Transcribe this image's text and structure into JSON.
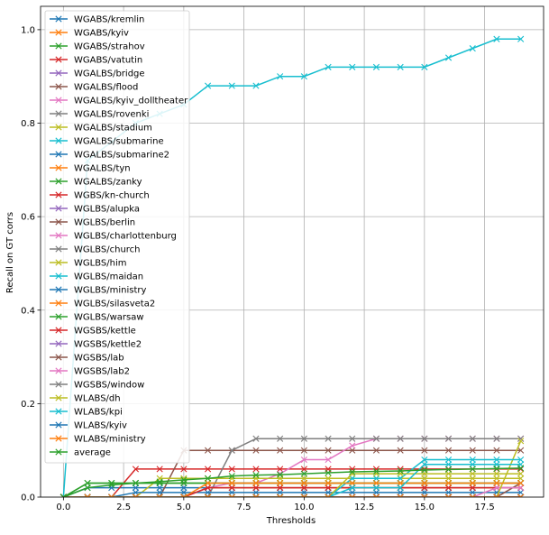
{
  "chart_data": {
    "type": "line",
    "title": "",
    "xlabel": "Thresholds",
    "ylabel": "Recall on GT corrs",
    "xlim": [
      -0.95,
      19.95
    ],
    "ylim": [
      0,
      1.05
    ],
    "xticks": [
      0.0,
      2.5,
      5.0,
      7.5,
      10.0,
      12.5,
      15.0,
      17.5
    ],
    "xtick_labels": [
      "0.0",
      "2.5",
      "5.0",
      "7.5",
      "10.0",
      "12.5",
      "15.0",
      "17.5"
    ],
    "yticks": [
      0.0,
      0.2,
      0.4,
      0.6,
      0.8,
      1.0
    ],
    "ytick_labels": [
      "0.0",
      "0.2",
      "0.4",
      "0.6",
      "0.8",
      "1.0"
    ],
    "grid": true,
    "legend_position": "upper-left",
    "marker": "x",
    "x": [
      0,
      1,
      2,
      3,
      4,
      5,
      6,
      7,
      8,
      9,
      10,
      11,
      12,
      13,
      14,
      15,
      16,
      17,
      18,
      19
    ],
    "series": [
      {
        "name": "WGABS/kremlin",
        "color": "#1f77b4",
        "values": [
          0,
          0.02,
          0.02,
          0.02,
          0.02,
          0.02,
          0.02,
          0.02,
          0.02,
          0.02,
          0.02,
          0.02,
          0.02,
          0.02,
          0.02,
          0.02,
          0.02,
          0.02,
          0.02,
          0.02
        ]
      },
      {
        "name": "WGABS/kyiv",
        "color": "#ff7f0e",
        "values": [
          0,
          0,
          0,
          0,
          0,
          0,
          0.02,
          0.02,
          0.02,
          0.02,
          0.02,
          0.02,
          0.02,
          0.02,
          0.02,
          0.02,
          0.02,
          0.02,
          0.02,
          0.02
        ]
      },
      {
        "name": "WGABS/strahov",
        "color": "#2ca02c",
        "values": [
          0,
          0.03,
          0.03,
          0.03,
          0.03,
          0.03,
          0.03,
          0.03,
          0.03,
          0.03,
          0.03,
          0.03,
          0.03,
          0.03,
          0.03,
          0.03,
          0.03,
          0.03,
          0.03,
          0.03
        ]
      },
      {
        "name": "WGABS/vatutin",
        "color": "#d62728",
        "values": [
          0,
          0,
          0,
          0.06,
          0.06,
          0.06,
          0.06,
          0.06,
          0.06,
          0.06,
          0.06,
          0.06,
          0.06,
          0.06,
          0.06,
          0.06,
          0.06,
          0.06,
          0.06,
          0.06
        ]
      },
      {
        "name": "WGALBS/bridge",
        "color": "#9467bd",
        "values": [
          0,
          0,
          0,
          0,
          0,
          0,
          0,
          0,
          0,
          0,
          0,
          0,
          0,
          0,
          0,
          0,
          0,
          0,
          0,
          0
        ]
      },
      {
        "name": "WGALBS/flood",
        "color": "#8c564b",
        "values": [
          0,
          0,
          0,
          0,
          0,
          0.1,
          0.1,
          0.1,
          0.1,
          0.1,
          0.1,
          0.1,
          0.1,
          0.1,
          0.1,
          0.1,
          0.1,
          0.1,
          0.1,
          0.1
        ]
      },
      {
        "name": "WGALBS/kyiv_dolltheater",
        "color": "#e377c2",
        "values": [
          0,
          0,
          0,
          0,
          0,
          0,
          0.02,
          0.03,
          0.03,
          0.05,
          0.08,
          0.08,
          0.11,
          0.125,
          0.125,
          0.125,
          0.125,
          0.125,
          0.125,
          0.125
        ]
      },
      {
        "name": "WGALBS/rovenki",
        "color": "#7f7f7f",
        "values": [
          0,
          0,
          0,
          0,
          0,
          0,
          0,
          0.1,
          0.125,
          0.125,
          0.125,
          0.125,
          0.125,
          0.125,
          0.125,
          0.125,
          0.125,
          0.125,
          0.125,
          0.125
        ]
      },
      {
        "name": "WGALBS/stadium",
        "color": "#bcbd22",
        "values": [
          0,
          0,
          0,
          0,
          0.04,
          0.04,
          0.04,
          0.04,
          0.04,
          0.04,
          0.04,
          0.04,
          0.04,
          0.04,
          0.04,
          0.04,
          0.04,
          0.04,
          0.04,
          0.04
        ]
      },
      {
        "name": "WGALBS/submarine",
        "color": "#17becf",
        "values": [
          0,
          0.72,
          0.76,
          0.8,
          0.82,
          0.84,
          0.88,
          0.88,
          0.88,
          0.9,
          0.9,
          0.92,
          0.92,
          0.92,
          0.92,
          0.92,
          0.94,
          0.96,
          0.98,
          0.98
        ]
      },
      {
        "name": "WGALBS/submarine2",
        "color": "#1f77b4",
        "values": [
          0,
          0,
          0,
          0.01,
          0.01,
          0.01,
          0.01,
          0.01,
          0.01,
          0.01,
          0.01,
          0.01,
          0.01,
          0.01,
          0.01,
          0.01,
          0.01,
          0.01,
          0.01,
          0.01
        ]
      },
      {
        "name": "WGALBS/tyn",
        "color": "#ff7f0e",
        "values": [
          0,
          0,
          0,
          0,
          0,
          0,
          0,
          0,
          0,
          0,
          0,
          0,
          0,
          0,
          0,
          0,
          0,
          0,
          0,
          0
        ]
      },
      {
        "name": "WGALBS/zanky",
        "color": "#2ca02c",
        "values": [
          0,
          0.03,
          0.03,
          0.03,
          0.03,
          0.03,
          0.03,
          0.03,
          0.03,
          0.03,
          0.03,
          0.03,
          0.03,
          0.03,
          0.03,
          0.03,
          0.03,
          0.03,
          0.03,
          0.03
        ]
      },
      {
        "name": "WGBS/kn-church",
        "color": "#d62728",
        "values": [
          0,
          0,
          0,
          0,
          0,
          0,
          0.02,
          0.02,
          0.02,
          0.02,
          0.02,
          0.02,
          0.02,
          0.02,
          0.02,
          0.02,
          0.02,
          0.02,
          0.02,
          0.02
        ]
      },
      {
        "name": "WGLBS/alupka",
        "color": "#9467bd",
        "values": [
          0,
          0,
          0,
          0,
          0,
          0,
          0,
          0,
          0,
          0,
          0,
          0,
          0,
          0,
          0,
          0,
          0,
          0,
          0,
          0
        ]
      },
      {
        "name": "WGLBS/berlin",
        "color": "#8c564b",
        "values": [
          0,
          0,
          0,
          0,
          0,
          0,
          0,
          0,
          0,
          0,
          0,
          0,
          0,
          0,
          0,
          0,
          0,
          0,
          0,
          0.03
        ]
      },
      {
        "name": "WGLBS/charlottenburg",
        "color": "#e377c2",
        "values": [
          0,
          0,
          0,
          0,
          0,
          0,
          0,
          0,
          0,
          0,
          0,
          0,
          0,
          0,
          0,
          0,
          0,
          0,
          0.02,
          0.02
        ]
      },
      {
        "name": "WGLBS/church",
        "color": "#7f7f7f",
        "values": [
          0,
          0,
          0,
          0,
          0,
          0,
          0,
          0,
          0,
          0,
          0,
          0,
          0,
          0,
          0,
          0,
          0,
          0,
          0,
          0
        ]
      },
      {
        "name": "WGLBS/him",
        "color": "#bcbd22",
        "values": [
          0,
          0,
          0,
          0,
          0,
          0,
          0,
          0,
          0,
          0,
          0,
          0,
          0,
          0,
          0,
          0,
          0,
          0,
          0,
          0.12
        ]
      },
      {
        "name": "WGLBS/maidan",
        "color": "#17becf",
        "values": [
          0,
          0,
          0,
          0,
          0,
          0,
          0,
          0,
          0,
          0,
          0,
          0,
          0.04,
          0.04,
          0.04,
          0.08,
          0.08,
          0.08,
          0.08,
          0.08
        ]
      },
      {
        "name": "WGLBS/ministry",
        "color": "#1f77b4",
        "values": [
          0,
          0,
          0,
          0,
          0,
          0,
          0,
          0,
          0,
          0,
          0,
          0,
          0,
          0,
          0,
          0,
          0,
          0,
          0,
          0
        ]
      },
      {
        "name": "WGLBS/silasveta2",
        "color": "#ff7f0e",
        "values": [
          0,
          0,
          0,
          0,
          0,
          0,
          0.03,
          0.03,
          0.03,
          0.03,
          0.03,
          0.03,
          0.03,
          0.03,
          0.03,
          0.03,
          0.03,
          0.03,
          0.03,
          0.03
        ]
      },
      {
        "name": "WGLBS/warsaw",
        "color": "#2ca02c",
        "values": [
          0,
          0,
          0,
          0,
          0,
          0,
          0,
          0,
          0,
          0,
          0,
          0,
          0,
          0,
          0,
          0,
          0,
          0,
          0,
          0
        ]
      },
      {
        "name": "WGSBS/kettle",
        "color": "#d62728",
        "values": [
          0,
          0,
          0,
          0,
          0,
          0,
          0,
          0,
          0,
          0,
          0,
          0,
          0,
          0,
          0,
          0,
          0,
          0,
          0,
          0
        ]
      },
      {
        "name": "WGSBS/kettle2",
        "color": "#9467bd",
        "values": [
          0,
          0,
          0,
          0,
          0,
          0,
          0,
          0,
          0,
          0,
          0,
          0,
          0,
          0,
          0,
          0,
          0,
          0,
          0,
          0
        ]
      },
      {
        "name": "WGSBS/lab",
        "color": "#8c564b",
        "values": [
          0,
          0,
          0,
          0,
          0,
          0,
          0,
          0,
          0,
          0,
          0,
          0,
          0,
          0,
          0,
          0,
          0,
          0,
          0,
          0
        ]
      },
      {
        "name": "WGSBS/lab2",
        "color": "#e377c2",
        "values": [
          0,
          0,
          0,
          0,
          0,
          0,
          0,
          0,
          0,
          0,
          0,
          0,
          0,
          0,
          0,
          0,
          0,
          0,
          0,
          0
        ]
      },
      {
        "name": "WGSBS/window",
        "color": "#7f7f7f",
        "values": [
          0,
          0,
          0,
          0,
          0,
          0,
          0,
          0,
          0,
          0,
          0,
          0,
          0,
          0,
          0,
          0,
          0,
          0,
          0,
          0
        ]
      },
      {
        "name": "WLABS/dh",
        "color": "#bcbd22",
        "values": [
          0,
          0,
          0,
          0,
          0,
          0,
          0,
          0,
          0,
          0,
          0,
          0,
          0.05,
          0.05,
          0.05,
          0.05,
          0.05,
          0.05,
          0.05,
          0.05
        ]
      },
      {
        "name": "WLABS/kpi",
        "color": "#17becf",
        "values": [
          0,
          0,
          0,
          0,
          0,
          0,
          0,
          0,
          0,
          0,
          0,
          0,
          0.02,
          0.02,
          0.02,
          0.07,
          0.07,
          0.07,
          0.07,
          0.07
        ]
      },
      {
        "name": "WLABS/kyiv",
        "color": "#1f77b4",
        "values": [
          0,
          0,
          0,
          0,
          0,
          0,
          0,
          0,
          0,
          0,
          0,
          0,
          0,
          0,
          0,
          0,
          0,
          0,
          0,
          0
        ]
      },
      {
        "name": "WLABS/ministry",
        "color": "#ff7f0e",
        "values": [
          0,
          0,
          0,
          0,
          0,
          0,
          0,
          0,
          0,
          0,
          0,
          0,
          0,
          0,
          0,
          0,
          0,
          0,
          0,
          0
        ]
      },
      {
        "name": "average",
        "color": "#2ca02c",
        "values": [
          0,
          0.02,
          0.026,
          0.03,
          0.033,
          0.037,
          0.04,
          0.045,
          0.047,
          0.048,
          0.05,
          0.052,
          0.054,
          0.055,
          0.056,
          0.058,
          0.059,
          0.06,
          0.061,
          0.062
        ]
      }
    ]
  }
}
